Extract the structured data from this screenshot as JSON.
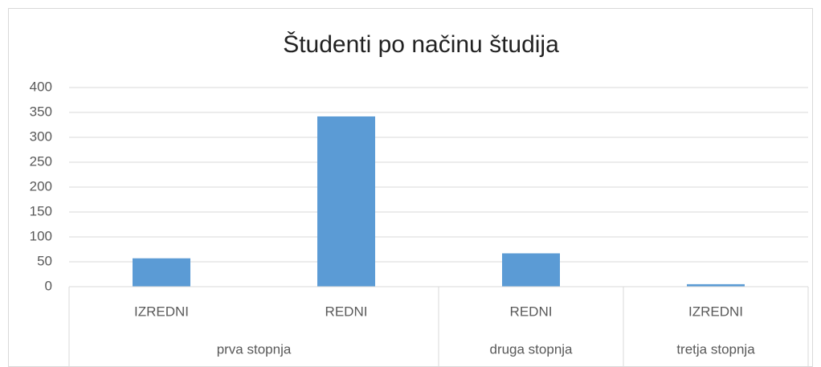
{
  "chart_data": {
    "type": "bar",
    "title": "Študenti po načinu študija",
    "categories": [
      "IZREDNI",
      "REDNI",
      "REDNI",
      "IZREDNI"
    ],
    "group_labels": [
      "prva stopnja",
      null,
      "druga stopnja",
      "tretja stopnja"
    ],
    "values": [
      57,
      342,
      67,
      5
    ],
    "color": "#5b9bd5",
    "ylim": [
      0,
      400
    ],
    "yticks": [
      0,
      50,
      100,
      150,
      200,
      250,
      300,
      350,
      400
    ],
    "grid": true
  }
}
